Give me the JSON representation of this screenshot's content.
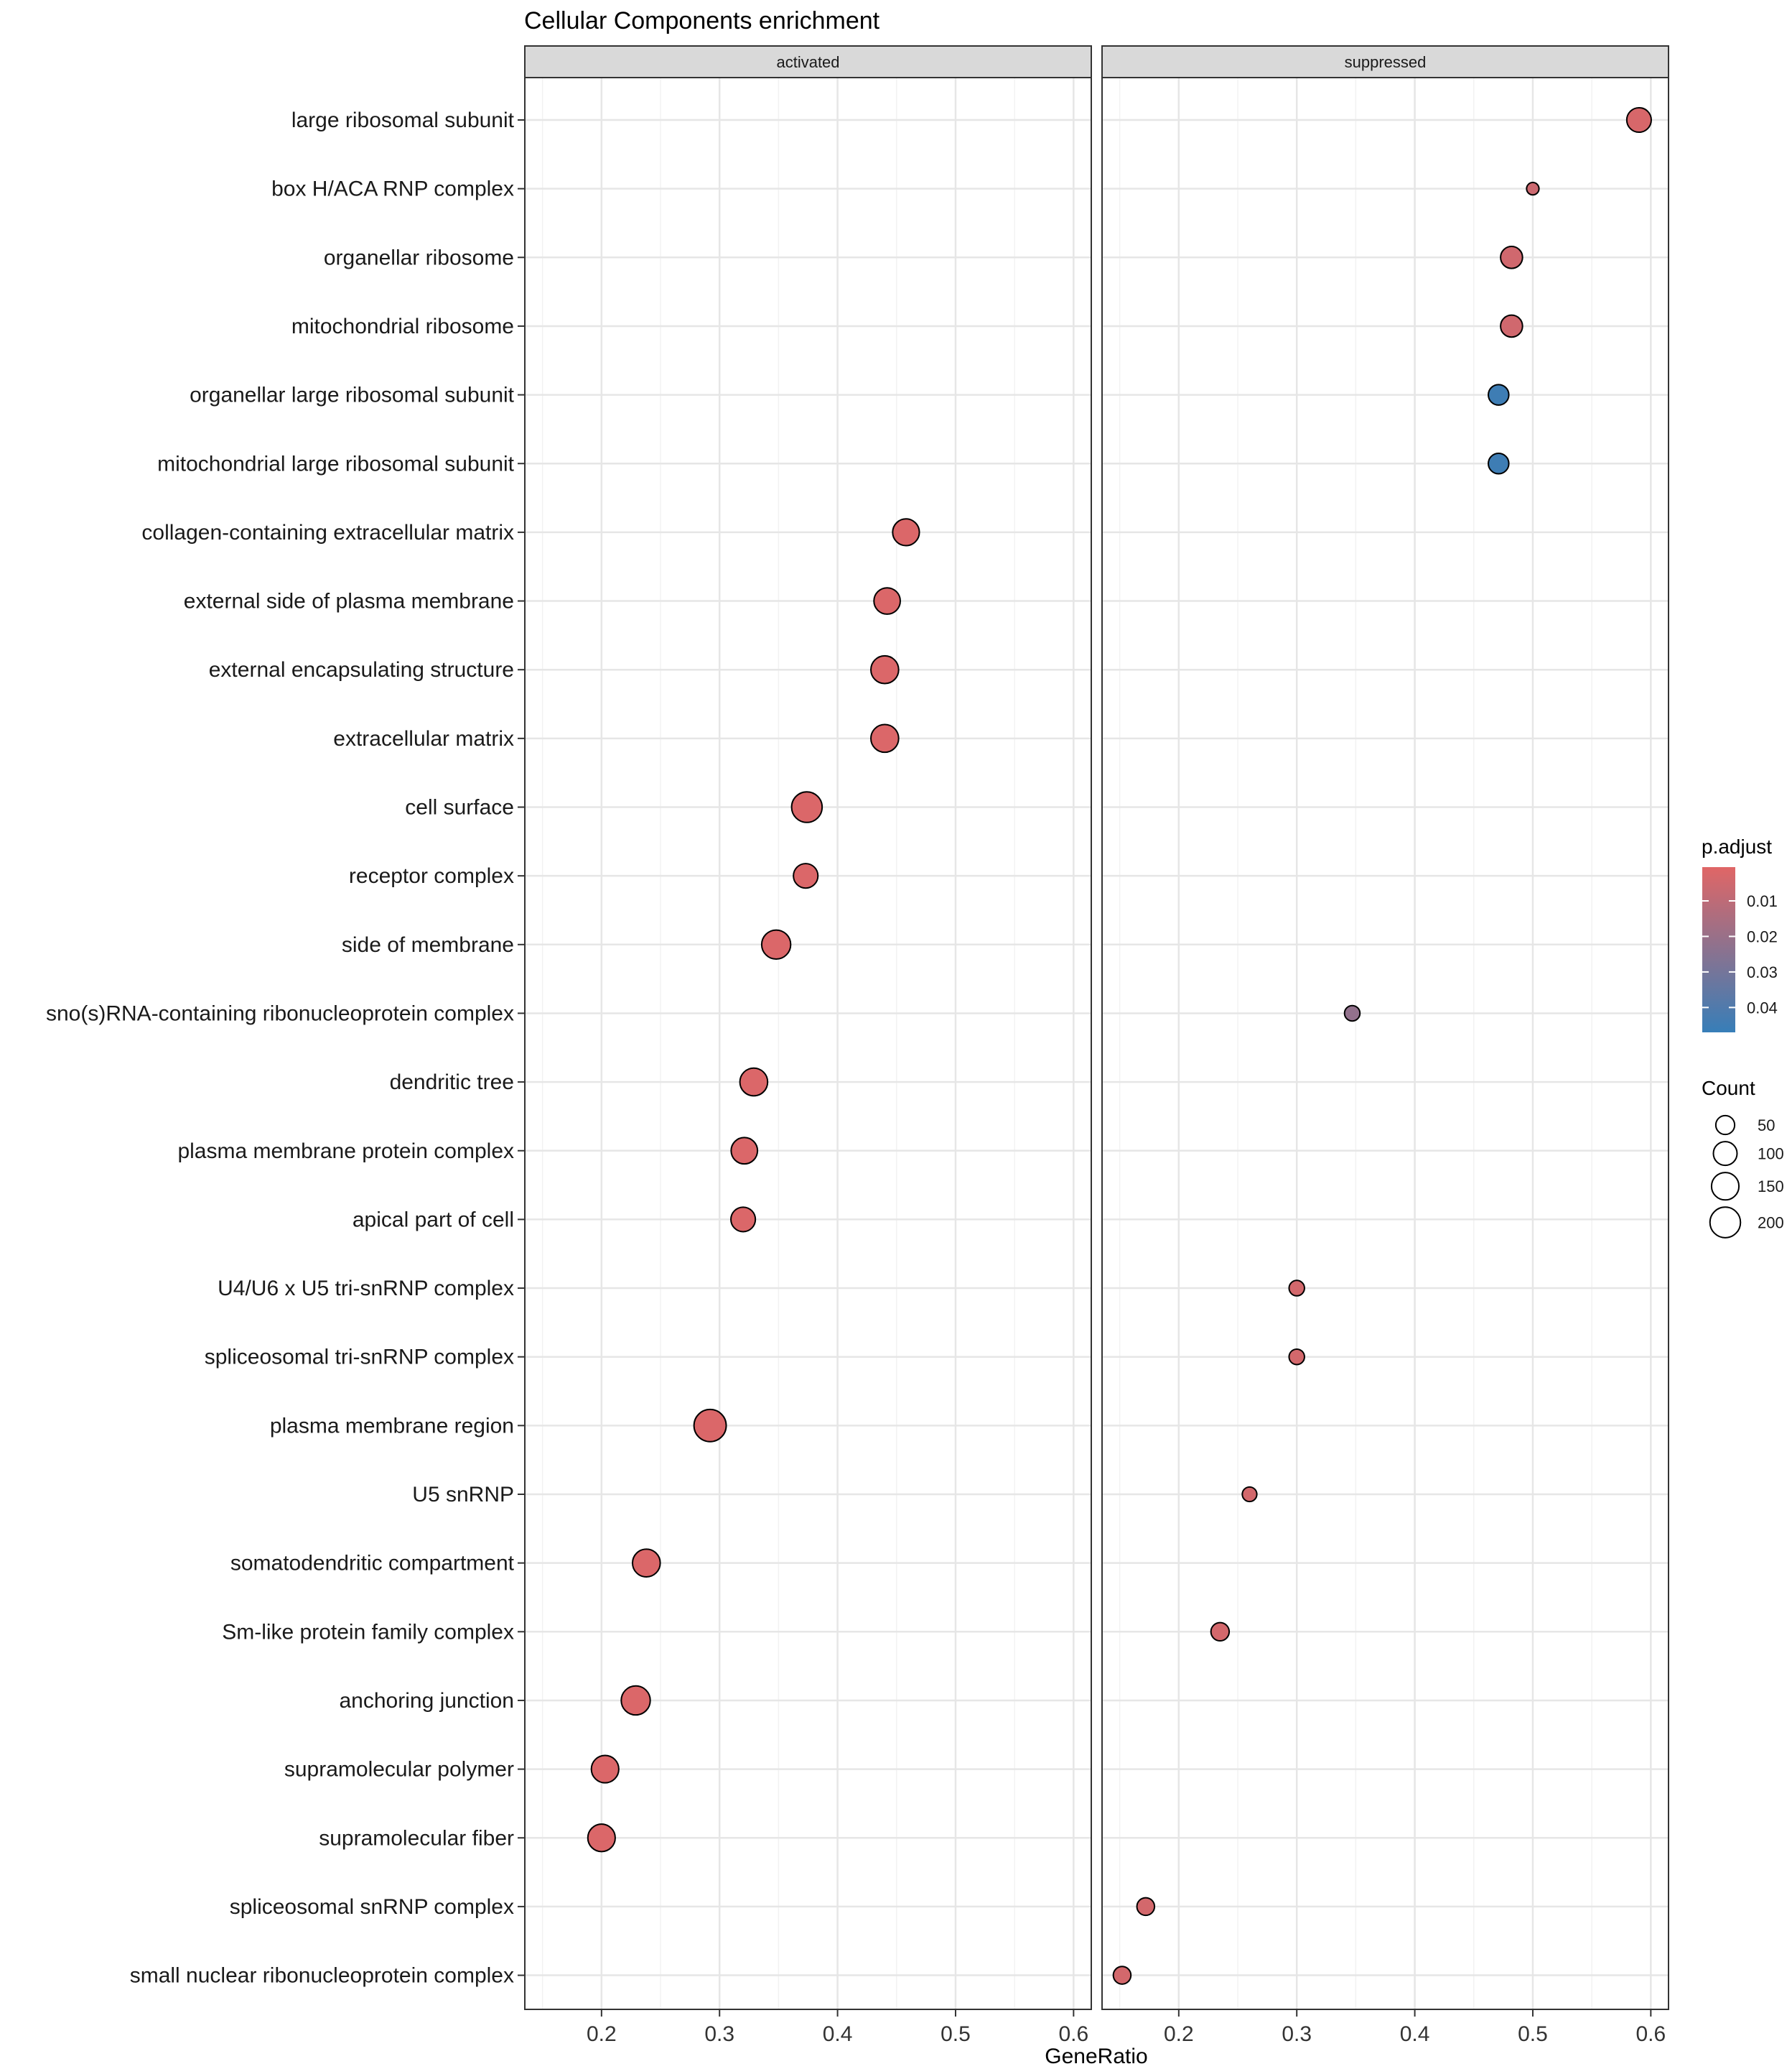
{
  "chart_data": {
    "type": "scatter",
    "title": "Cellular Components enrichment",
    "xlabel": "GeneRatio",
    "ylabel": "",
    "xlim": [
      0.135,
      0.615
    ],
    "xticks": [
      0.2,
      0.3,
      0.4,
      0.5,
      0.6
    ],
    "xtick_labels": [
      "0.2",
      "0.3",
      "0.4",
      "0.5",
      "0.6"
    ],
    "grid": true,
    "facets": [
      "activated",
      "suppressed"
    ],
    "categories": [
      "large ribosomal subunit",
      "box H/ACA RNP complex",
      "organellar ribosome",
      "mitochondrial ribosome",
      "organellar large ribosomal subunit",
      "mitochondrial large ribosomal subunit",
      "collagen-containing extracellular matrix",
      "external side of plasma membrane",
      "external encapsulating structure",
      "extracellular matrix",
      "cell surface",
      "receptor complex",
      "side of membrane",
      "sno(s)RNA-containing ribonucleoprotein complex",
      "dendritic tree",
      "plasma membrane protein complex",
      "apical part of cell",
      "U4/U6 x U5 tri-snRNP complex",
      "spliceosomal tri-snRNP complex",
      "plasma membrane region",
      "U5 snRNP",
      "somatodendritic compartment",
      "Sm-like protein family complex",
      "anchoring junction",
      "supramolecular polymer",
      "supramolecular fiber",
      "spliceosomal snRNP complex",
      "small nuclear ribonucleoprotein complex"
    ],
    "points": [
      {
        "facet": "suppressed",
        "category": "large ribosomal subunit",
        "x": 0.59,
        "count": 110,
        "p_adjust": 0.003
      },
      {
        "facet": "suppressed",
        "category": "box H/ACA RNP complex",
        "x": 0.5,
        "count": 10,
        "p_adjust": 0.006
      },
      {
        "facet": "suppressed",
        "category": "organellar ribosome",
        "x": 0.482,
        "count": 80,
        "p_adjust": 0.005
      },
      {
        "facet": "suppressed",
        "category": "mitochondrial ribosome",
        "x": 0.482,
        "count": 80,
        "p_adjust": 0.005
      },
      {
        "facet": "suppressed",
        "category": "organellar large ribosomal subunit",
        "x": 0.471,
        "count": 65,
        "p_adjust": 0.045
      },
      {
        "facet": "suppressed",
        "category": "mitochondrial large ribosomal subunit",
        "x": 0.471,
        "count": 65,
        "p_adjust": 0.045
      },
      {
        "facet": "activated",
        "category": "collagen-containing extracellular matrix",
        "x": 0.458,
        "count": 140,
        "p_adjust": 0.002
      },
      {
        "facet": "activated",
        "category": "external side of plasma membrane",
        "x": 0.442,
        "count": 135,
        "p_adjust": 0.002
      },
      {
        "facet": "activated",
        "category": "external encapsulating structure",
        "x": 0.44,
        "count": 155,
        "p_adjust": 0.002
      },
      {
        "facet": "activated",
        "category": "extracellular matrix",
        "x": 0.44,
        "count": 155,
        "p_adjust": 0.002
      },
      {
        "facet": "activated",
        "category": "cell surface",
        "x": 0.374,
        "count": 200,
        "p_adjust": 0.002
      },
      {
        "facet": "activated",
        "category": "receptor complex",
        "x": 0.373,
        "count": 110,
        "p_adjust": 0.002
      },
      {
        "facet": "activated",
        "category": "side of membrane",
        "x": 0.348,
        "count": 175,
        "p_adjust": 0.002
      },
      {
        "facet": "suppressed",
        "category": "sno(s)RNA-containing ribonucleoprotein complex",
        "x": 0.347,
        "count": 25,
        "p_adjust": 0.022
      },
      {
        "facet": "activated",
        "category": "dendritic tree",
        "x": 0.329,
        "count": 155,
        "p_adjust": 0.002
      },
      {
        "facet": "activated",
        "category": "plasma membrane protein complex",
        "x": 0.321,
        "count": 135,
        "p_adjust": 0.002
      },
      {
        "facet": "activated",
        "category": "apical part of cell",
        "x": 0.32,
        "count": 110,
        "p_adjust": 0.002
      },
      {
        "facet": "suppressed",
        "category": "U4/U6 x U5 tri-snRNP complex",
        "x": 0.3,
        "count": 25,
        "p_adjust": 0.004
      },
      {
        "facet": "suppressed",
        "category": "spliceosomal tri-snRNP complex",
        "x": 0.3,
        "count": 25,
        "p_adjust": 0.004
      },
      {
        "facet": "activated",
        "category": "plasma membrane region",
        "x": 0.292,
        "count": 230,
        "p_adjust": 0.002
      },
      {
        "facet": "suppressed",
        "category": "U5 snRNP",
        "x": 0.26,
        "count": 20,
        "p_adjust": 0.004
      },
      {
        "facet": "activated",
        "category": "somatodendritic compartment",
        "x": 0.238,
        "count": 155,
        "p_adjust": 0.002
      },
      {
        "facet": "suppressed",
        "category": "Sm-like protein family complex",
        "x": 0.235,
        "count": 45,
        "p_adjust": 0.004
      },
      {
        "facet": "activated",
        "category": "anchoring junction",
        "x": 0.229,
        "count": 175,
        "p_adjust": 0.002
      },
      {
        "facet": "activated",
        "category": "supramolecular polymer",
        "x": 0.203,
        "count": 150,
        "p_adjust": 0.002
      },
      {
        "facet": "activated",
        "category": "supramolecular fiber",
        "x": 0.2,
        "count": 150,
        "p_adjust": 0.002
      },
      {
        "facet": "suppressed",
        "category": "spliceosomal snRNP complex",
        "x": 0.172,
        "count": 40,
        "p_adjust": 0.004
      },
      {
        "facet": "suppressed",
        "category": "small nuclear ribonucleoprotein complex",
        "x": 0.152,
        "count": 40,
        "p_adjust": 0.004
      }
    ],
    "legend_color": {
      "title": "p.adjust",
      "breaks": [
        0.01,
        0.02,
        0.03,
        0.04
      ],
      "labels": [
        "0.01",
        "0.02",
        "0.03",
        "0.04"
      ],
      "limits": [
        0.0005,
        0.047
      ],
      "low_color": "#e06666",
      "high_color": "#377eb8",
      "placement": "right"
    },
    "legend_size": {
      "title": "Count",
      "breaks": [
        50,
        100,
        150,
        200
      ],
      "labels": [
        "50",
        "100",
        "150",
        "200"
      ],
      "placement": "right"
    }
  }
}
